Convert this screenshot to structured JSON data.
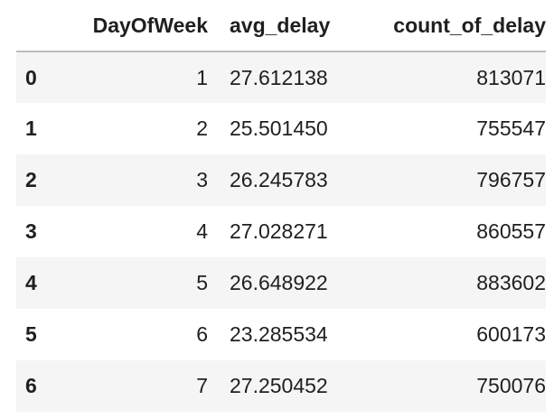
{
  "table": {
    "columns": {
      "index": "",
      "day": "DayOfWeek",
      "avg": "avg_delay",
      "count": "count_of_delay"
    },
    "rows": [
      {
        "index": "0",
        "day": "1",
        "avg": "27.612138",
        "count": "813071"
      },
      {
        "index": "1",
        "day": "2",
        "avg": "25.501450",
        "count": "755547"
      },
      {
        "index": "2",
        "day": "3",
        "avg": "26.245783",
        "count": "796757"
      },
      {
        "index": "3",
        "day": "4",
        "avg": "27.028271",
        "count": "860557"
      },
      {
        "index": "4",
        "day": "5",
        "avg": "26.648922",
        "count": "883602"
      },
      {
        "index": "5",
        "day": "6",
        "avg": "23.285534",
        "count": "600173"
      },
      {
        "index": "6",
        "day": "7",
        "avg": "27.250452",
        "count": "750076"
      }
    ]
  }
}
